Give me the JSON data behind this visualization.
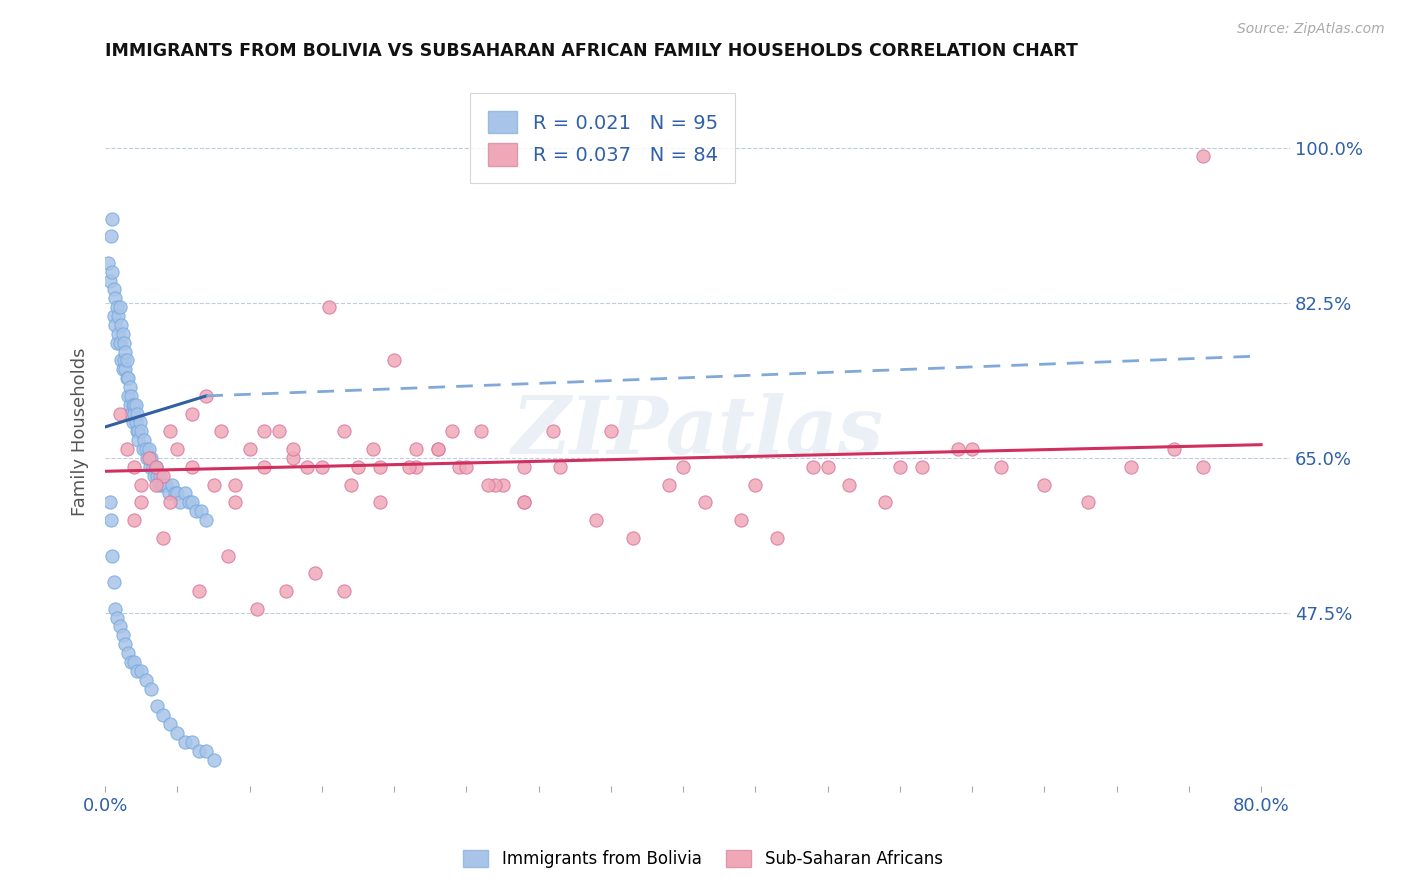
{
  "title": "IMMIGRANTS FROM BOLIVIA VS SUBSAHARAN AFRICAN FAMILY HOUSEHOLDS CORRELATION CHART",
  "source": "Source: ZipAtlas.com",
  "ylabel": "Family Households",
  "xlim": [
    0.0,
    0.82
  ],
  "ylim": [
    0.28,
    1.08
  ],
  "yticks": [
    0.475,
    0.65,
    0.825,
    1.0
  ],
  "ytick_labels": [
    "47.5%",
    "65.0%",
    "82.5%",
    "100.0%"
  ],
  "xtick_left_label": "0.0%",
  "xtick_right_label": "80.0%",
  "blue_color": "#a8c4e8",
  "pink_color": "#f0a8b8",
  "blue_line_solid_color": "#3060a0",
  "blue_line_dash_color": "#80a8d8",
  "pink_line_color": "#d03060",
  "legend_R_blue": "0.021",
  "legend_N_blue": "95",
  "legend_R_pink": "0.037",
  "legend_N_pink": "84",
  "legend_label_blue": "Immigrants from Bolivia",
  "legend_label_pink": "Sub-Saharan Africans",
  "watermark": "ZIPatlas",
  "background_color": "#ffffff",
  "grid_color": "#c0cce0",
  "title_color": "#111111",
  "tick_label_color": "#3060a8",
  "source_color": "#aaaaaa",
  "blue_x": [
    0.002,
    0.003,
    0.004,
    0.005,
    0.005,
    0.006,
    0.006,
    0.007,
    0.007,
    0.008,
    0.008,
    0.009,
    0.009,
    0.01,
    0.01,
    0.011,
    0.011,
    0.012,
    0.012,
    0.013,
    0.013,
    0.014,
    0.014,
    0.015,
    0.015,
    0.016,
    0.016,
    0.017,
    0.017,
    0.018,
    0.018,
    0.019,
    0.019,
    0.02,
    0.02,
    0.021,
    0.021,
    0.022,
    0.022,
    0.023,
    0.023,
    0.024,
    0.025,
    0.026,
    0.027,
    0.028,
    0.029,
    0.03,
    0.031,
    0.032,
    0.033,
    0.034,
    0.035,
    0.036,
    0.037,
    0.038,
    0.039,
    0.04,
    0.042,
    0.044,
    0.046,
    0.048,
    0.05,
    0.052,
    0.055,
    0.058,
    0.06,
    0.063,
    0.066,
    0.07,
    0.003,
    0.004,
    0.005,
    0.006,
    0.007,
    0.008,
    0.01,
    0.012,
    0.014,
    0.016,
    0.018,
    0.02,
    0.022,
    0.025,
    0.028,
    0.032,
    0.036,
    0.04,
    0.045,
    0.05,
    0.055,
    0.06,
    0.065,
    0.07,
    0.075
  ],
  "blue_y": [
    0.87,
    0.85,
    0.9,
    0.92,
    0.86,
    0.81,
    0.84,
    0.83,
    0.8,
    0.82,
    0.78,
    0.81,
    0.79,
    0.82,
    0.78,
    0.8,
    0.76,
    0.79,
    0.75,
    0.78,
    0.76,
    0.75,
    0.77,
    0.74,
    0.76,
    0.74,
    0.72,
    0.73,
    0.71,
    0.72,
    0.7,
    0.71,
    0.69,
    0.71,
    0.7,
    0.69,
    0.71,
    0.68,
    0.7,
    0.68,
    0.67,
    0.69,
    0.68,
    0.66,
    0.67,
    0.66,
    0.65,
    0.66,
    0.64,
    0.65,
    0.64,
    0.63,
    0.64,
    0.63,
    0.62,
    0.63,
    0.62,
    0.62,
    0.62,
    0.61,
    0.62,
    0.61,
    0.61,
    0.6,
    0.61,
    0.6,
    0.6,
    0.59,
    0.59,
    0.58,
    0.6,
    0.58,
    0.54,
    0.51,
    0.48,
    0.47,
    0.46,
    0.45,
    0.44,
    0.43,
    0.42,
    0.42,
    0.41,
    0.41,
    0.4,
    0.39,
    0.37,
    0.36,
    0.35,
    0.34,
    0.33,
    0.33,
    0.32,
    0.32,
    0.31
  ],
  "pink_x": [
    0.01,
    0.015,
    0.02,
    0.025,
    0.03,
    0.035,
    0.04,
    0.045,
    0.05,
    0.06,
    0.07,
    0.08,
    0.09,
    0.1,
    0.11,
    0.12,
    0.13,
    0.14,
    0.155,
    0.165,
    0.175,
    0.185,
    0.2,
    0.215,
    0.23,
    0.245,
    0.26,
    0.275,
    0.29,
    0.31,
    0.025,
    0.035,
    0.045,
    0.06,
    0.075,
    0.09,
    0.11,
    0.13,
    0.15,
    0.17,
    0.19,
    0.21,
    0.23,
    0.25,
    0.27,
    0.29,
    0.02,
    0.04,
    0.065,
    0.085,
    0.105,
    0.125,
    0.145,
    0.165,
    0.19,
    0.215,
    0.24,
    0.265,
    0.29,
    0.315,
    0.34,
    0.365,
    0.39,
    0.415,
    0.44,
    0.465,
    0.49,
    0.515,
    0.54,
    0.565,
    0.59,
    0.62,
    0.65,
    0.68,
    0.71,
    0.74,
    0.76,
    0.35,
    0.4,
    0.45,
    0.5,
    0.55,
    0.6,
    0.76
  ],
  "pink_y": [
    0.7,
    0.66,
    0.64,
    0.62,
    0.65,
    0.64,
    0.63,
    0.68,
    0.66,
    0.7,
    0.72,
    0.68,
    0.62,
    0.66,
    0.64,
    0.68,
    0.65,
    0.64,
    0.82,
    0.68,
    0.64,
    0.66,
    0.76,
    0.64,
    0.66,
    0.64,
    0.68,
    0.62,
    0.64,
    0.68,
    0.6,
    0.62,
    0.6,
    0.64,
    0.62,
    0.6,
    0.68,
    0.66,
    0.64,
    0.62,
    0.6,
    0.64,
    0.66,
    0.64,
    0.62,
    0.6,
    0.58,
    0.56,
    0.5,
    0.54,
    0.48,
    0.5,
    0.52,
    0.5,
    0.64,
    0.66,
    0.68,
    0.62,
    0.6,
    0.64,
    0.58,
    0.56,
    0.62,
    0.6,
    0.58,
    0.56,
    0.64,
    0.62,
    0.6,
    0.64,
    0.66,
    0.64,
    0.62,
    0.6,
    0.64,
    0.66,
    0.64,
    0.68,
    0.64,
    0.62,
    0.64,
    0.64,
    0.66,
    0.99
  ]
}
